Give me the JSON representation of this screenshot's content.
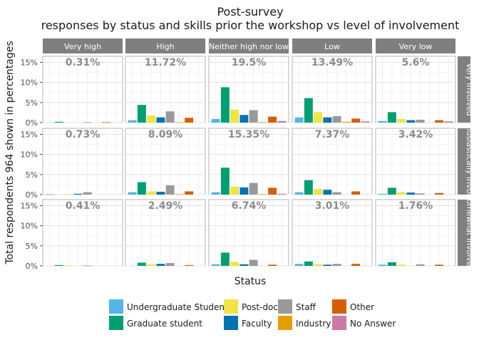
{
  "chart_data": {
    "type": "bar",
    "title": "Post-survey",
    "subtitle": "responses by status and skills prior the workshop vs level of involvement",
    "xlabel": "Status",
    "ylabel": "Total respondents 964 shown in percentages",
    "y_ticks": [
      "0%",
      "5%",
      "10%",
      "15%"
    ],
    "ylim": [
      0,
      16.5
    ],
    "grid": true,
    "legend_position": "bottom",
    "facet_columns": [
      "Very high",
      "High",
      "Neither high nor low",
      "Low",
      "Very low"
    ],
    "facet_rows": [
      "Very involved",
      "Enthusiastically involved",
      "Somewhat involved"
    ],
    "categories": [
      "Undergraduate Student",
      "Graduate student",
      "Post-doc",
      "Faculty",
      "Staff",
      "Industry",
      "Other",
      "No Answer"
    ],
    "colors": [
      "#56B4E9",
      "#009E73",
      "#F0E442",
      "#0072B2",
      "#999999",
      "#E69F00",
      "#D55E00",
      "#CC79A7"
    ],
    "panels": [
      {
        "row": "Very involved",
        "col": "Very high",
        "total": "0.31%",
        "values": [
          0,
          0.2,
          0,
          0,
          0.1,
          0,
          0.1,
          0
        ]
      },
      {
        "row": "Very involved",
        "col": "High",
        "total": "11.72%",
        "values": [
          0.6,
          4.4,
          1.8,
          1.3,
          2.8,
          0.1,
          1.2,
          0
        ]
      },
      {
        "row": "Very involved",
        "col": "Neither high nor low",
        "total": "19.5%",
        "values": [
          0.9,
          8.8,
          3.2,
          1.9,
          3.1,
          0.1,
          1.5,
          0.4
        ]
      },
      {
        "row": "Very involved",
        "col": "Low",
        "total": "13.49%",
        "values": [
          1.3,
          6.1,
          2.6,
          1.3,
          1.6,
          0.2,
          1.0,
          0.3
        ]
      },
      {
        "row": "Very involved",
        "col": "Very low",
        "total": "5.6%",
        "values": [
          0.4,
          2.6,
          0.9,
          0.6,
          0.7,
          0,
          0.6,
          0.3
        ]
      },
      {
        "row": "Enthusiastically involved",
        "col": "Very high",
        "total": "0.73%",
        "values": [
          0.1,
          0,
          0.1,
          0.2,
          0.6,
          0,
          0,
          0
        ]
      },
      {
        "row": "Enthusiastically involved",
        "col": "High",
        "total": "8.09%",
        "values": [
          0.6,
          3.1,
          0.8,
          0.7,
          2.3,
          0.1,
          0.8,
          0
        ]
      },
      {
        "row": "Enthusiastically involved",
        "col": "Neither high nor low",
        "total": "15.35%",
        "values": [
          0.6,
          6.7,
          2.0,
          1.8,
          2.9,
          0.1,
          1.7,
          0.2
        ]
      },
      {
        "row": "Enthusiastically involved",
        "col": "Low",
        "total": "7.37%",
        "values": [
          0.6,
          3.6,
          1.4,
          1.2,
          0.6,
          0,
          0.8,
          0
        ]
      },
      {
        "row": "Enthusiastically involved",
        "col": "Very low",
        "total": "3.42%",
        "values": [
          0.2,
          1.7,
          0.6,
          0.5,
          0.3,
          0,
          0.4,
          0
        ]
      },
      {
        "row": "Somewhat involved",
        "col": "Very high",
        "total": "0.41%",
        "values": [
          0,
          0.2,
          0.1,
          0,
          0.1,
          0,
          0,
          0
        ]
      },
      {
        "row": "Somewhat involved",
        "col": "High",
        "total": "2.49%",
        "values": [
          0,
          0.8,
          0.4,
          0.5,
          0.7,
          0,
          0.2,
          0
        ]
      },
      {
        "row": "Somewhat involved",
        "col": "Neither high nor low",
        "total": "6.74%",
        "values": [
          0.4,
          3.3,
          1.0,
          0.4,
          1.5,
          0,
          0.3,
          0
        ]
      },
      {
        "row": "Somewhat involved",
        "col": "Low",
        "total": "3.01%",
        "values": [
          0.5,
          1.1,
          0.4,
          0.3,
          0.5,
          0,
          0.5,
          0
        ]
      },
      {
        "row": "Somewhat involved",
        "col": "Very low",
        "total": "1.76%",
        "values": [
          0.3,
          0.9,
          0.3,
          0,
          0.4,
          0,
          0.3,
          0
        ]
      }
    ]
  }
}
